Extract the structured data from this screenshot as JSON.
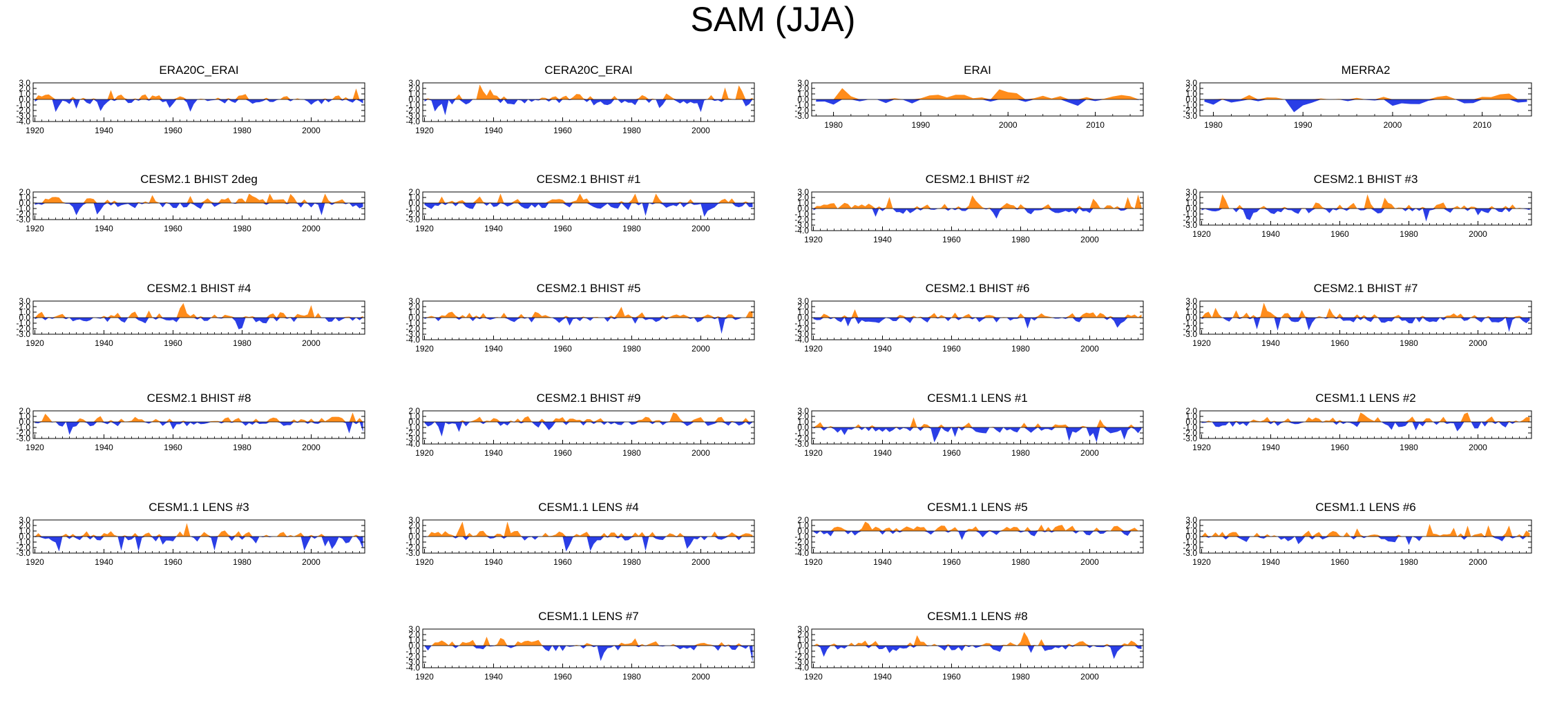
{
  "title": "SAM (JJA)",
  "colors": {
    "positive": "#ff8c1a",
    "negative": "#2a3ee6",
    "axis": "#000000"
  },
  "chart_data": [
    {
      "type": "area",
      "title": "ERA20C_ERAI",
      "x_start": 1920,
      "x_end": 2015,
      "x_ticks": [
        1920,
        1940,
        1960,
        1980,
        2000
      ],
      "ylim": [
        -4,
        3
      ],
      "y_tick_labels": [
        "3.0",
        "2.0",
        "1.0",
        "0.0",
        "-1.0",
        "-2.0",
        "-3.0",
        "-4.0"
      ],
      "seed": 101
    },
    {
      "type": "area",
      "title": "CERA20C_ERAI",
      "x_start": 1920,
      "x_end": 2015,
      "x_ticks": [
        1920,
        1940,
        1960,
        1980,
        2000
      ],
      "ylim": [
        -4,
        3
      ],
      "y_tick_labels": [
        "3.0",
        "2.0",
        "1.0",
        "0.0",
        "-1.0",
        "-2.0",
        "-3.0",
        "-4.0"
      ],
      "seed": 102
    },
    {
      "type": "area",
      "title": "ERAI",
      "x_start": 1978,
      "x_end": 2015,
      "x_ticks": [
        1980,
        1990,
        2000,
        2010
      ],
      "ylim": [
        -3,
        3
      ],
      "y_tick_labels": [
        "3.0",
        "2.0",
        "1.0",
        "0.0",
        "-1.0",
        "-2.0",
        "-3.0"
      ],
      "seed": 103
    },
    {
      "type": "area",
      "title": "MERRA2",
      "x_start": 1979,
      "x_end": 2015,
      "x_ticks": [
        1980,
        1990,
        2000,
        2010
      ],
      "ylim": [
        -3,
        3
      ],
      "y_tick_labels": [
        "3.0",
        "2.0",
        "1.0",
        "0.0",
        "-1.0",
        "-2.0",
        "-3.0"
      ],
      "seed": 104
    },
    {
      "type": "area",
      "title": "CESM2.1 BHIST 2deg",
      "x_start": 1920,
      "x_end": 2015,
      "x_ticks": [
        1920,
        1940,
        1960,
        1980,
        2000
      ],
      "ylim": [
        -3,
        2
      ],
      "y_tick_labels": [
        "2.0",
        "1.0",
        "0.0",
        "-1.0",
        "-2.0",
        "-3.0"
      ],
      "seed": 201
    },
    {
      "type": "area",
      "title": "CESM2.1 BHIST #1",
      "x_start": 1920,
      "x_end": 2015,
      "x_ticks": [
        1920,
        1940,
        1960,
        1980,
        2000
      ],
      "ylim": [
        -3,
        2
      ],
      "y_tick_labels": [
        "2.0",
        "1.0",
        "0.0",
        "-1.0",
        "-2.0",
        "-3.0"
      ],
      "seed": 202
    },
    {
      "type": "area",
      "title": "CESM2.1 BHIST #2",
      "x_start": 1920,
      "x_end": 2015,
      "x_ticks": [
        1920,
        1940,
        1960,
        1980,
        2000
      ],
      "ylim": [
        -4,
        3
      ],
      "y_tick_labels": [
        "3.0",
        "2.0",
        "1.0",
        "0.0",
        "-1.0",
        "-2.0",
        "-3.0",
        "-4.0"
      ],
      "seed": 203
    },
    {
      "type": "area",
      "title": "CESM2.1 BHIST #3",
      "x_start": 1920,
      "x_end": 2015,
      "x_ticks": [
        1920,
        1940,
        1960,
        1980,
        2000
      ],
      "ylim": [
        -3,
        3
      ],
      "y_tick_labels": [
        "3.0",
        "2.0",
        "1.0",
        "0.0",
        "-1.0",
        "-2.0",
        "-3.0"
      ],
      "seed": 204
    },
    {
      "type": "area",
      "title": "CESM2.1 BHIST #4",
      "x_start": 1920,
      "x_end": 2015,
      "x_ticks": [
        1920,
        1940,
        1960,
        1980,
        2000
      ],
      "ylim": [
        -3,
        3
      ],
      "y_tick_labels": [
        "3.0",
        "2.0",
        "1.0",
        "0.0",
        "-1.0",
        "-2.0",
        "-3.0"
      ],
      "seed": 301
    },
    {
      "type": "area",
      "title": "CESM2.1 BHIST #5",
      "x_start": 1920,
      "x_end": 2015,
      "x_ticks": [
        1920,
        1940,
        1960,
        1980,
        2000
      ],
      "ylim": [
        -4,
        3
      ],
      "y_tick_labels": [
        "3.0",
        "2.0",
        "1.0",
        "0.0",
        "-1.0",
        "-2.0",
        "-3.0",
        "-4.0"
      ],
      "seed": 302
    },
    {
      "type": "area",
      "title": "CESM2.1 BHIST #6",
      "x_start": 1920,
      "x_end": 2015,
      "x_ticks": [
        1920,
        1940,
        1960,
        1980,
        2000
      ],
      "ylim": [
        -4,
        3
      ],
      "y_tick_labels": [
        "3.0",
        "2.0",
        "1.0",
        "0.0",
        "-1.0",
        "-2.0",
        "-3.0",
        "-4.0"
      ],
      "seed": 303
    },
    {
      "type": "area",
      "title": "CESM2.1 BHIST #7",
      "x_start": 1920,
      "x_end": 2015,
      "x_ticks": [
        1920,
        1940,
        1960,
        1980,
        2000
      ],
      "ylim": [
        -3,
        3
      ],
      "y_tick_labels": [
        "3.0",
        "2.0",
        "1.0",
        "0.0",
        "-1.0",
        "-2.0",
        "-3.0"
      ],
      "seed": 304
    },
    {
      "type": "area",
      "title": "CESM2.1 BHIST #8",
      "x_start": 1920,
      "x_end": 2015,
      "x_ticks": [
        1920,
        1940,
        1960,
        1980,
        2000
      ],
      "ylim": [
        -3,
        2
      ],
      "y_tick_labels": [
        "2.0",
        "1.0",
        "0.0",
        "-1.0",
        "-2.0",
        "-3.0"
      ],
      "seed": 401
    },
    {
      "type": "area",
      "title": "CESM2.1 BHIST #9",
      "x_start": 1920,
      "x_end": 2015,
      "x_ticks": [
        1920,
        1940,
        1960,
        1980,
        2000
      ],
      "ylim": [
        -4,
        2
      ],
      "y_tick_labels": [
        "2.0",
        "1.0",
        "0.0",
        "-1.0",
        "-2.0",
        "-3.0",
        "-4.0"
      ],
      "seed": 402
    },
    {
      "type": "area",
      "title": "CESM1.1 LENS #1",
      "x_start": 1920,
      "x_end": 2015,
      "x_ticks": [
        1920,
        1940,
        1960,
        1980,
        2000
      ],
      "ylim": [
        -3,
        3
      ],
      "y_tick_labels": [
        "3.0",
        "2.0",
        "1.0",
        "0.0",
        "-1.0",
        "-2.0",
        "-3.0"
      ],
      "seed": 403
    },
    {
      "type": "area",
      "title": "CESM1.1 LENS #2",
      "x_start": 1920,
      "x_end": 2015,
      "x_ticks": [
        1920,
        1940,
        1960,
        1980,
        2000
      ],
      "ylim": [
        -3,
        2
      ],
      "y_tick_labels": [
        "2.0",
        "1.0",
        "0.0",
        "-1.0",
        "-2.0",
        "-3.0"
      ],
      "seed": 404
    },
    {
      "type": "area",
      "title": "CESM1.1 LENS #3",
      "x_start": 1920,
      "x_end": 2015,
      "x_ticks": [
        1920,
        1940,
        1960,
        1980,
        2000
      ],
      "ylim": [
        -3,
        3
      ],
      "y_tick_labels": [
        "3.0",
        "2.0",
        "1.0",
        "0.0",
        "-1.0",
        "-2.0",
        "-3.0"
      ],
      "seed": 501
    },
    {
      "type": "area",
      "title": "CESM1.1 LENS #4",
      "x_start": 1920,
      "x_end": 2015,
      "x_ticks": [
        1920,
        1940,
        1960,
        1980,
        2000
      ],
      "ylim": [
        -3,
        3
      ],
      "y_tick_labels": [
        "3.0",
        "2.0",
        "1.0",
        "0.0",
        "-1.0",
        "-2.0",
        "-3.0"
      ],
      "seed": 502
    },
    {
      "type": "area",
      "title": "CESM1.1 LENS #5",
      "x_start": 1920,
      "x_end": 2015,
      "x_ticks": [
        1920,
        1940,
        1960,
        1980,
        2000
      ],
      "ylim": [
        -4,
        2
      ],
      "y_tick_labels": [
        "2.0",
        "1.0",
        "0.0",
        "-1.0",
        "-2.0",
        "-3.0",
        "-4.0"
      ],
      "seed": 503
    },
    {
      "type": "area",
      "title": "CESM1.1 LENS #6",
      "x_start": 1920,
      "x_end": 2015,
      "x_ticks": [
        1920,
        1940,
        1960,
        1980,
        2000
      ],
      "ylim": [
        -3,
        3
      ],
      "y_tick_labels": [
        "3.0",
        "2.0",
        "1.0",
        "0.0",
        "-1.0",
        "-2.0",
        "-3.0"
      ],
      "seed": 504
    },
    {
      "type": "area",
      "title": "CESM1.1 LENS #7",
      "x_start": 1920,
      "x_end": 2015,
      "x_ticks": [
        1920,
        1940,
        1960,
        1980,
        2000
      ],
      "ylim": [
        -4,
        3
      ],
      "y_tick_labels": [
        "3.0",
        "2.0",
        "1.0",
        "0.0",
        "-1.0",
        "-2.0",
        "-3.0",
        "-4.0"
      ],
      "seed": 602
    },
    {
      "type": "area",
      "title": "CESM1.1 LENS #8",
      "x_start": 1920,
      "x_end": 2015,
      "x_ticks": [
        1920,
        1940,
        1960,
        1980,
        2000
      ],
      "ylim": [
        -4,
        3
      ],
      "y_tick_labels": [
        "3.0",
        "2.0",
        "1.0",
        "0.0",
        "-1.0",
        "-2.0",
        "-3.0",
        "-4.0"
      ],
      "seed": 603
    }
  ]
}
